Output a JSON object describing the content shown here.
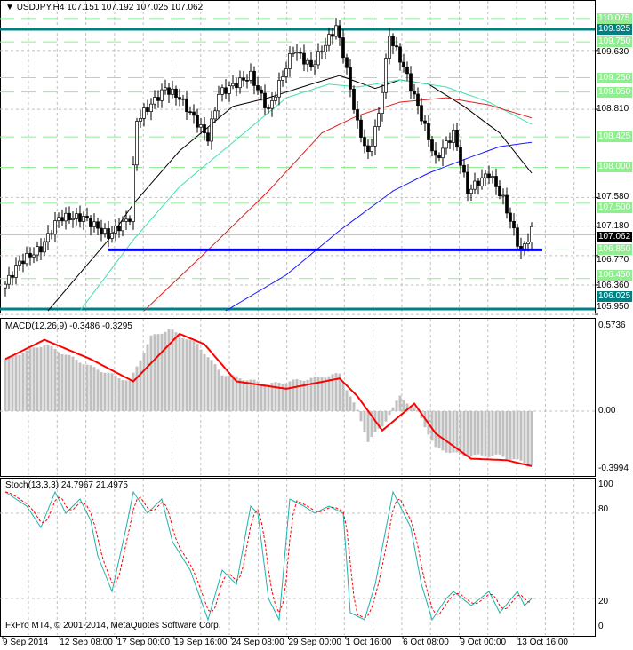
{
  "header": {
    "symbol": "USDJPY,H4",
    "ohlc": "107.151 107.192 107.025 107.062"
  },
  "footer": {
    "copyright": "FxPro MT4, © 2001-2014, MetaQuotes Software Corp."
  },
  "colors": {
    "level": "#90ee90",
    "teal": "#008080",
    "support": "#0000ff",
    "ma_fast": "#000000",
    "ma_mid": "#40e0b0",
    "ma_slow": "#e02020",
    "ma_long": "#1a1aff",
    "macd_hist": "#c0c0c0",
    "signal": "#ff0000",
    "stoch_main": "#20b2aa",
    "stoch_signal": "#ff0000"
  },
  "chart_data": [
    {
      "type": "candlestick",
      "title": "USDJPY,H4",
      "ylim": [
        105.95,
        110.15
      ],
      "price_axis_ticks": [
        "109.630",
        "108.810",
        "107.580",
        "107.180",
        "106.770",
        "106.360",
        "105.950"
      ],
      "level_labels": [
        {
          "text": "110.075",
          "value": 110.075,
          "style": "green"
        },
        {
          "text": "109.925",
          "value": 109.925,
          "style": "teal"
        },
        {
          "text": "109.750",
          "value": 109.75,
          "style": "green"
        },
        {
          "text": "109.250",
          "value": 109.25,
          "style": "green"
        },
        {
          "text": "109.050",
          "value": 109.05,
          "style": "green"
        },
        {
          "text": "108.425",
          "value": 108.425,
          "style": "green"
        },
        {
          "text": "108.000",
          "value": 108.0,
          "style": "green"
        },
        {
          "text": "107.500",
          "value": 107.5,
          "style": "green"
        },
        {
          "text": "106.850",
          "value": 106.85,
          "style": "green"
        },
        {
          "text": "106.450",
          "value": 106.45,
          "style": "green"
        },
        {
          "text": "106.025",
          "value": 106.025,
          "style": "teal"
        }
      ],
      "current_price": {
        "text": "107.062",
        "value": 107.062
      },
      "support_line": {
        "value": 106.85,
        "from_bar": 29
      },
      "close_path": [
        [
          0,
          106.37
        ],
        [
          4,
          106.68
        ],
        [
          10,
          106.87
        ],
        [
          15,
          107.3
        ],
        [
          22,
          107.3
        ],
        [
          29,
          107.05
        ],
        [
          35,
          107.3
        ],
        [
          37,
          108.66
        ],
        [
          45,
          109.1
        ],
        [
          49,
          108.97
        ],
        [
          57,
          108.41
        ],
        [
          60,
          109.03
        ],
        [
          69,
          109.28
        ],
        [
          74,
          108.79
        ],
        [
          81,
          109.65
        ],
        [
          86,
          109.4
        ],
        [
          93,
          109.96
        ],
        [
          95,
          109.59
        ],
        [
          99,
          108.6
        ],
        [
          102,
          108.17
        ],
        [
          105,
          108.73
        ],
        [
          108,
          109.84
        ],
        [
          112,
          109.4
        ],
        [
          116,
          108.85
        ],
        [
          121,
          108.11
        ],
        [
          126,
          108.48
        ],
        [
          130,
          107.67
        ],
        [
          136,
          107.92
        ],
        [
          140,
          107.55
        ],
        [
          145,
          106.81
        ],
        [
          148,
          107.12
        ]
      ],
      "moving_averages": [
        {
          "name": "MA fast",
          "color": "ma_fast",
          "points": [
            [
              12,
              106.0
            ],
            [
              29,
              106.99
            ],
            [
              36,
              107.49
            ],
            [
              49,
              108.23
            ],
            [
              64,
              108.85
            ],
            [
              74,
              108.97
            ],
            [
              86,
              109.16
            ],
            [
              94,
              109.28
            ],
            [
              104,
              109.1
            ],
            [
              111,
              109.22
            ],
            [
              119,
              109.16
            ],
            [
              129,
              108.85
            ],
            [
              139,
              108.48
            ],
            [
              148,
              107.92
            ]
          ]
        },
        {
          "name": "MA mid",
          "color": "ma_mid",
          "points": [
            [
              21,
              106.0
            ],
            [
              36,
              106.99
            ],
            [
              49,
              107.73
            ],
            [
              64,
              108.35
            ],
            [
              79,
              108.97
            ],
            [
              91,
              109.16
            ],
            [
              99,
              109.12
            ],
            [
              111,
              109.22
            ],
            [
              124,
              109.12
            ],
            [
              136,
              108.91
            ],
            [
              148,
              108.6
            ]
          ]
        },
        {
          "name": "MA slow",
          "color": "ma_slow",
          "points": [
            [
              39,
              106.0
            ],
            [
              56,
              106.8
            ],
            [
              74,
              107.67
            ],
            [
              89,
              108.48
            ],
            [
              99,
              108.72
            ],
            [
              111,
              108.91
            ],
            [
              124,
              108.97
            ],
            [
              136,
              108.87
            ],
            [
              148,
              108.69
            ]
          ]
        },
        {
          "name": "MA long",
          "color": "ma_long",
          "points": [
            [
              62,
              106.0
            ],
            [
              79,
              106.5
            ],
            [
              94,
              107.12
            ],
            [
              109,
              107.67
            ],
            [
              119,
              107.92
            ],
            [
              129,
              108.11
            ],
            [
              139,
              108.29
            ],
            [
              148,
              108.35
            ]
          ]
        }
      ]
    },
    {
      "type": "bar+line",
      "title": "MACD(12,26,9) -0.3486 -0.3295",
      "ylim": [
        -0.3994,
        0.5736
      ],
      "axis_ticks": [
        "0.5736",
        "0.00",
        "-0.3994"
      ],
      "histogram_path": [
        [
          0,
          0.35
        ],
        [
          11,
          0.45
        ],
        [
          24,
          0.3
        ],
        [
          35,
          0.2
        ],
        [
          41,
          0.5
        ],
        [
          46,
          0.55
        ],
        [
          54,
          0.45
        ],
        [
          61,
          0.25
        ],
        [
          74,
          0.18
        ],
        [
          86,
          0.22
        ],
        [
          94,
          0.25
        ],
        [
          99,
          0.0
        ],
        [
          102,
          -0.2
        ],
        [
          106,
          -0.1
        ],
        [
          111,
          0.1
        ],
        [
          116,
          0.0
        ],
        [
          121,
          -0.25
        ],
        [
          129,
          -0.3
        ],
        [
          139,
          -0.3
        ],
        [
          148,
          -0.36
        ]
      ],
      "signal_path": [
        [
          0,
          0.35
        ],
        [
          11,
          0.48
        ],
        [
          24,
          0.35
        ],
        [
          36,
          0.2
        ],
        [
          49,
          0.52
        ],
        [
          56,
          0.45
        ],
        [
          65,
          0.2
        ],
        [
          79,
          0.15
        ],
        [
          94,
          0.22
        ],
        [
          99,
          0.1
        ],
        [
          106,
          -0.13
        ],
        [
          115,
          0.05
        ],
        [
          121,
          -0.15
        ],
        [
          131,
          -0.32
        ],
        [
          141,
          -0.33
        ],
        [
          148,
          -0.37
        ]
      ]
    },
    {
      "type": "line",
      "title": "Stoch(13,3,3) 24.7967 21.4975",
      "ylim": [
        0,
        100
      ],
      "axis_ticks": [
        "100",
        "80",
        "20",
        "0"
      ],
      "main_path": [
        [
          0,
          95
        ],
        [
          6,
          85
        ],
        [
          10,
          70
        ],
        [
          14,
          95
        ],
        [
          17,
          80
        ],
        [
          21,
          90
        ],
        [
          24,
          75
        ],
        [
          26,
          50
        ],
        [
          30,
          25
        ],
        [
          34,
          70
        ],
        [
          36,
          95
        ],
        [
          40,
          80
        ],
        [
          44,
          90
        ],
        [
          47,
          60
        ],
        [
          52,
          40
        ],
        [
          57,
          5
        ],
        [
          61,
          40
        ],
        [
          65,
          30
        ],
        [
          69,
          85
        ],
        [
          71,
          80
        ],
        [
          74,
          20
        ],
        [
          77,
          5
        ],
        [
          80,
          90
        ],
        [
          84,
          85
        ],
        [
          87,
          80
        ],
        [
          91,
          85
        ],
        [
          95,
          80
        ],
        [
          97,
          10
        ],
        [
          101,
          5
        ],
        [
          104,
          30
        ],
        [
          109,
          95
        ],
        [
          114,
          70
        ],
        [
          117,
          30
        ],
        [
          120,
          5
        ],
        [
          124,
          20
        ],
        [
          126,
          25
        ],
        [
          131,
          15
        ],
        [
          136,
          25
        ],
        [
          139,
          10
        ],
        [
          144,
          25
        ],
        [
          146,
          15
        ],
        [
          148,
          20
        ]
      ]
    },
    {
      "type": "time_axis",
      "labels": [
        "9 Sep 2014",
        "12 Sep 08:00",
        "17 Sep 00:00",
        "19 Sep 16:00",
        "24 Sep 08:00",
        "29 Sep 00:00",
        "1 Oct 16:00",
        "6 Oct 08:00",
        "9 Oct 00:00",
        "13 Oct 16:00"
      ]
    }
  ]
}
